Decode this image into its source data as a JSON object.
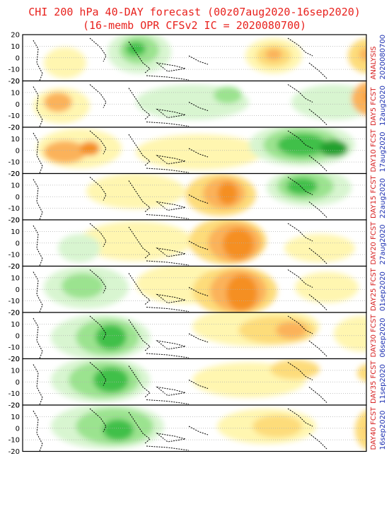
{
  "title": {
    "line1": "CHI 200 hPa 40-DAY forecast (00z07aug2020-16sep2020)",
    "line2": "(16-memb OPR CFSv2 IC = 2020080700)"
  },
  "colors": {
    "title": "#e8221e",
    "label_red": "#d62020",
    "label_blue": "#1a2eb0",
    "green_light": "#d8f5d0",
    "green_mid": "#9be38f",
    "green_dark": "#3fc04a",
    "green_darkest": "#22a12f",
    "yellow": "#fff6b0",
    "yellow_deep": "#fddc7a",
    "orange_light": "#fbb25a",
    "orange": "#f58f22"
  },
  "y_ticks": [
    "20",
    "10",
    "0",
    "-10",
    "-20"
  ],
  "panels": [
    {
      "label_top": "ANALYSIS",
      "label_bottom": "2020080700"
    },
    {
      "label_top": "DAY5 FCST",
      "label_bottom": "12aug2020"
    },
    {
      "label_top": "DAY10 FCST",
      "label_bottom": "17aug2020"
    },
    {
      "label_top": "DAY15 FCST",
      "label_bottom": "22aug2020"
    },
    {
      "label_top": "DAY20 FCST",
      "label_bottom": "27aug2020"
    },
    {
      "label_top": "DAY25 FCST",
      "label_bottom": "01sep2020"
    },
    {
      "label_top": "DAY30 FCST",
      "label_bottom": "06sep2020"
    },
    {
      "label_top": "DAY35 FCST",
      "label_bottom": "11sep2020"
    },
    {
      "label_top": "DAY40 FCST",
      "label_bottom": "16sep2020"
    }
  ]
}
